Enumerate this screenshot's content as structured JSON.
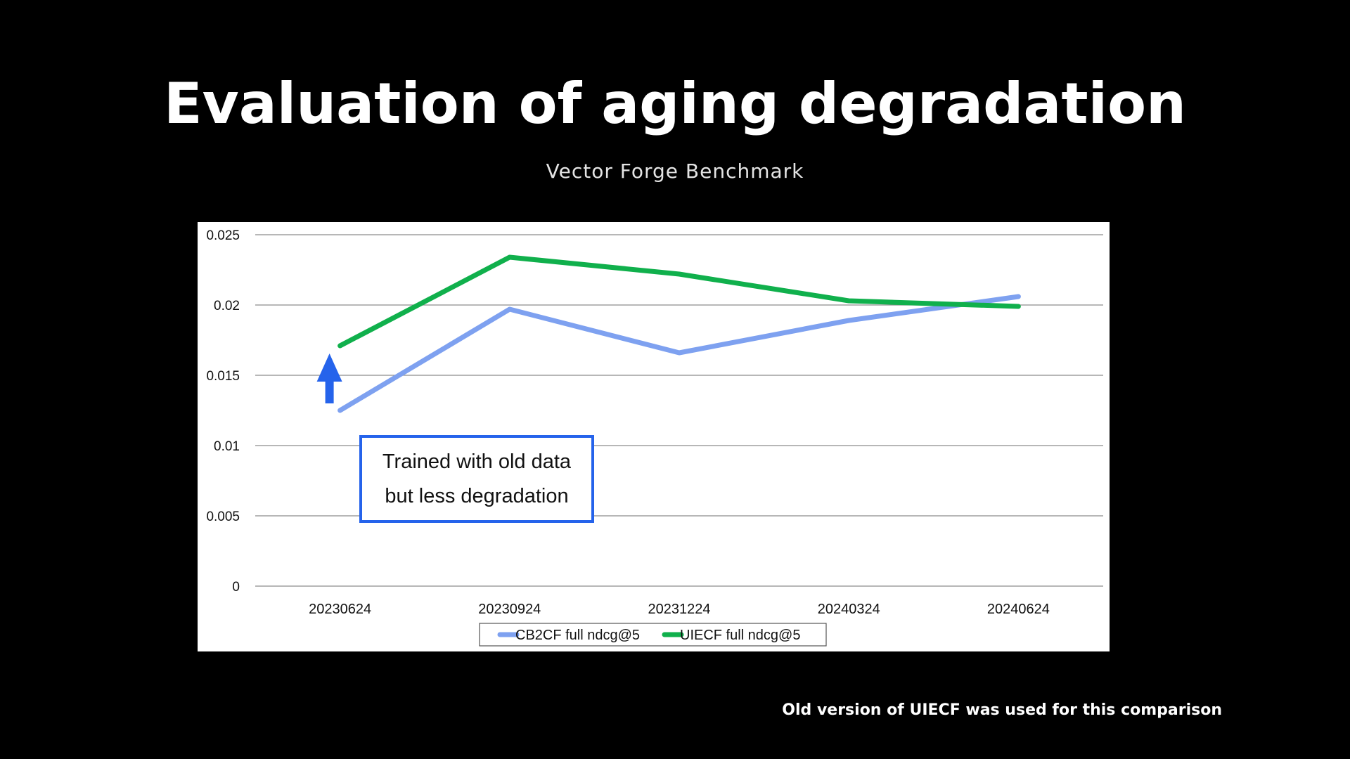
{
  "slide": {
    "title": "Evaluation of aging degradation",
    "subtitle": "Vector Forge Benchmark",
    "footnote": "Old version of UIECF was used for this comparison"
  },
  "colors": {
    "background": "#000000",
    "chart_background": "#ffffff",
    "cb2cf": "#7ea1f0",
    "uiecf": "#10b04c",
    "arrow": "#2563eb",
    "annotation_border": "#2563eb",
    "gridline": "#8c8c8c"
  },
  "annotation": {
    "line1": "Trained with old data",
    "line2": "but less degradation",
    "arrow_icon": "up-arrow-icon"
  },
  "chart_data": {
    "type": "line",
    "categories": [
      "20230624",
      "20230924",
      "20231224",
      "20240324",
      "20240624"
    ],
    "series": [
      {
        "name": "CB2CF full ndcg@5",
        "color": "#7ea1f0",
        "values": [
          0.0125,
          0.0197,
          0.0166,
          0.0189,
          0.0206
        ]
      },
      {
        "name": "UIECF full ndcg@5",
        "color": "#10b04c",
        "values": [
          0.0171,
          0.0234,
          0.0222,
          0.0203,
          0.0199
        ]
      }
    ],
    "yticks": [
      "0",
      "0.005",
      "0.01",
      "0.015",
      "0.02",
      "0.025"
    ],
    "ylim": [
      0,
      0.025
    ],
    "grid": true,
    "legend_position": "bottom",
    "title": "",
    "xlabel": "",
    "ylabel": ""
  }
}
